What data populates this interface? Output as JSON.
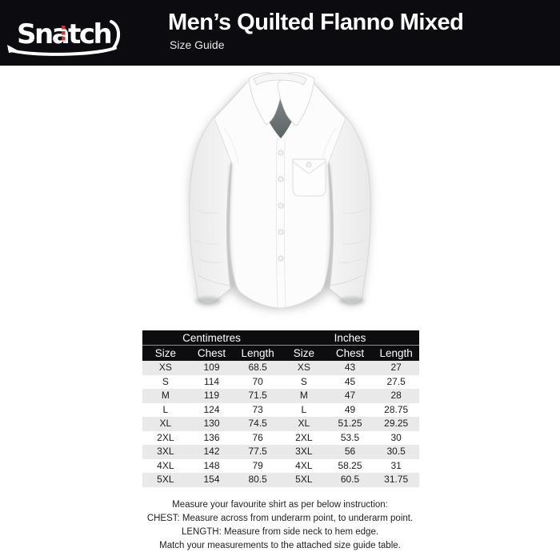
{
  "brand": {
    "logo_text": "Snatch"
  },
  "header": {
    "title": "Men’s Quilted Flanno Mixed",
    "subtitle": "Size Guide"
  },
  "shirt": {
    "description": "white long-sleeve button-up shirt illustration"
  },
  "size_table": {
    "unit_headers": [
      "Centimetres",
      "Inches"
    ],
    "column_headers": [
      "Size",
      "Chest",
      "Length",
      "Size",
      "Chest",
      "Length"
    ],
    "rows": [
      [
        "XS",
        "109",
        "68.5",
        "XS",
        "43",
        "27"
      ],
      [
        "S",
        "114",
        "70",
        "S",
        "45",
        "27.5"
      ],
      [
        "M",
        "119",
        "71.5",
        "M",
        "47",
        "28"
      ],
      [
        "L",
        "124",
        "73",
        "L",
        "49",
        "28.75"
      ],
      [
        "XL",
        "130",
        "74.5",
        "XL",
        "51.25",
        "29.25"
      ],
      [
        "2XL",
        "136",
        "76",
        "2XL",
        "53.5",
        "30"
      ],
      [
        "3XL",
        "142",
        "77.5",
        "3XL",
        "56",
        "30.5"
      ],
      [
        "4XL",
        "148",
        "79",
        "4XL",
        "58.25",
        "31"
      ],
      [
        "5XL",
        "154",
        "80.5",
        "5XL",
        "60.5",
        "31.75"
      ]
    ]
  },
  "instructions": {
    "lines": [
      "Measure your favourite shirt as per below instruction:",
      "CHEST: Measure across from underarm point, to underarm point.",
      "LENGTH: Measure from side neck to hem edge.",
      "Match your measurements to the attached size guide table."
    ]
  },
  "colors": {
    "header_bg": "#0b0b10",
    "table_header_bg": "#0d0d10",
    "row_alt": "#e9e9e9",
    "accent_red": "#d6322b",
    "collar_inner": "#76807f"
  }
}
